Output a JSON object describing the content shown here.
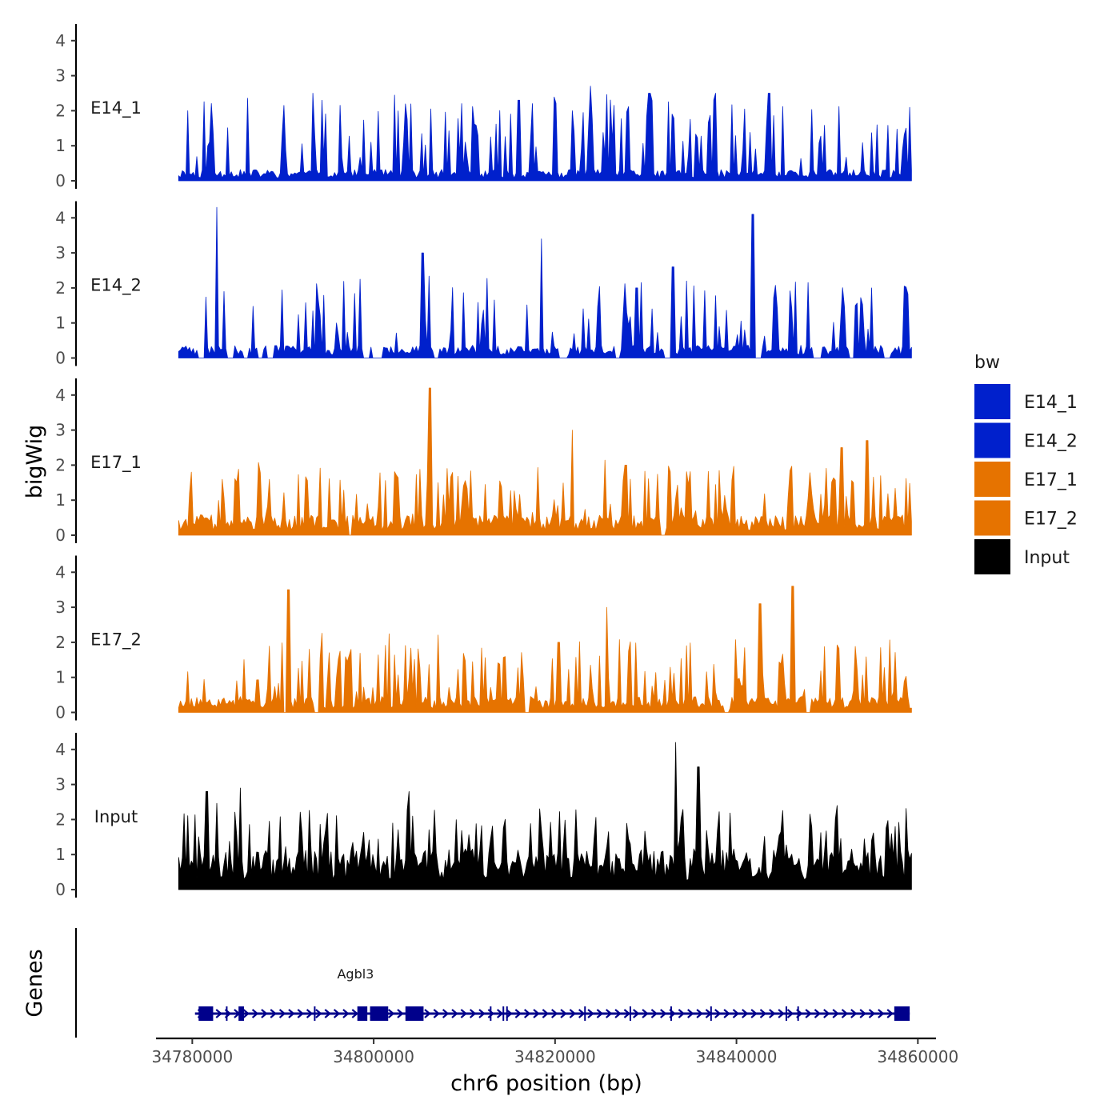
{
  "chart_data": {
    "type": "area",
    "xlabel": "chr6 position (bp)",
    "ylabel": "bigWig",
    "genes_label": "Genes",
    "xlim": [
      34776000,
      34862000
    ],
    "x_ticks": [
      34780000,
      34800000,
      34820000,
      34840000,
      34860000
    ],
    "x_tick_labels": [
      "34780000",
      "34800000",
      "34820000",
      "34840000",
      "34860000"
    ],
    "ylim": [
      0,
      4.5
    ],
    "y_ticks": [
      0,
      1,
      2,
      3,
      4
    ],
    "y_tick_labels": [
      "0",
      "1",
      "2",
      "3",
      "4"
    ],
    "data_range": [
      34778500,
      34859300
    ],
    "legend": {
      "title": "bw",
      "entries": [
        {
          "name": "E14_1",
          "color": "#0020CC"
        },
        {
          "name": "E14_2",
          "color": "#0020CC"
        },
        {
          "name": "E17_1",
          "color": "#E67300"
        },
        {
          "name": "E17_2",
          "color": "#E67300"
        },
        {
          "name": "Input",
          "color": "#000000"
        }
      ]
    },
    "series": [
      {
        "name": "E14_1",
        "color": "#0020CC",
        "seed": 11,
        "base": 0.25,
        "scale": 1.05,
        "gaps": [],
        "peaks": [
          [
            34779500,
            2.0
          ],
          [
            34794300,
            2.3
          ],
          [
            34816000,
            2.3
          ],
          [
            34823900,
            2.7
          ],
          [
            34830400,
            2.5
          ],
          [
            34837700,
            2.5
          ],
          [
            34843600,
            2.5
          ]
        ]
      },
      {
        "name": "E14_2",
        "color": "#0020CC",
        "seed": 23,
        "base": 0.28,
        "scale": 1.0,
        "gaps": [
          [
            34780600,
            34781300
          ],
          [
            34783900,
            34784600
          ],
          [
            34785600,
            34786100
          ],
          [
            34787200,
            34787800
          ],
          [
            34788200,
            34789000
          ],
          [
            34798800,
            34799500
          ],
          [
            34799900,
            34800900
          ],
          [
            34806700,
            34807200
          ],
          [
            34820500,
            34821300
          ],
          [
            34826700,
            34827200
          ],
          [
            34832100,
            34832800
          ],
          [
            34842000,
            34842700
          ],
          [
            34848500,
            34849300
          ],
          [
            34852400,
            34853000
          ],
          [
            34856300,
            34856900
          ]
        ],
        "peaks": [
          [
            34782700,
            4.3
          ],
          [
            34805400,
            3.0
          ],
          [
            34818500,
            3.4
          ],
          [
            34841800,
            4.1
          ],
          [
            34833000,
            2.6
          ],
          [
            34829000,
            2.0
          ]
        ]
      },
      {
        "name": "E17_1",
        "color": "#E67300",
        "seed": 37,
        "base": 0.45,
        "scale": 0.9,
        "gaps": [
          [
            34797200,
            34797600
          ],
          [
            34831700,
            34832200
          ]
        ],
        "peaks": [
          [
            34806200,
            4.2
          ],
          [
            34821900,
            3.0
          ],
          [
            34827800,
            2.0
          ],
          [
            34851600,
            2.5
          ],
          [
            34854400,
            2.7
          ]
        ]
      },
      {
        "name": "E17_2",
        "color": "#E67300",
        "seed": 53,
        "base": 0.35,
        "scale": 0.95,
        "gaps": [
          [
            34790000,
            34790400
          ],
          [
            34793500,
            34793900
          ],
          [
            34816700,
            34817100
          ],
          [
            34838600,
            34839100
          ],
          [
            34847700,
            34848100
          ]
        ],
        "peaks": [
          [
            34790600,
            3.5
          ],
          [
            34825700,
            3.0
          ],
          [
            34842600,
            3.1
          ],
          [
            34846200,
            3.6
          ],
          [
            34820400,
            2.0
          ]
        ]
      },
      {
        "name": "Input",
        "color": "#000000",
        "seed": 71,
        "base": 0.9,
        "scale": 1.05,
        "gaps": [],
        "peaks": [
          [
            34833300,
            4.2
          ],
          [
            34835800,
            3.5
          ],
          [
            34803900,
            2.8
          ],
          [
            34781600,
            2.8
          ],
          [
            34785300,
            2.9
          ]
        ]
      }
    ],
    "gene": {
      "name": "Agbl3",
      "start": 34780300,
      "end": 34859100,
      "strand": "+",
      "color": "#00008B",
      "exons": [
        [
          34780700,
          34782300
        ],
        [
          34785100,
          34785700
        ],
        [
          34798200,
          34799300
        ],
        [
          34799600,
          34801600
        ],
        [
          34803500,
          34805500
        ],
        [
          34857400,
          34859100
        ]
      ],
      "small_exons": [
        34783800,
        34793500,
        34800300,
        34812900,
        34814300,
        34814700,
        34823300,
        34828300,
        34832800,
        34837200,
        34845500,
        34846800
      ]
    }
  }
}
